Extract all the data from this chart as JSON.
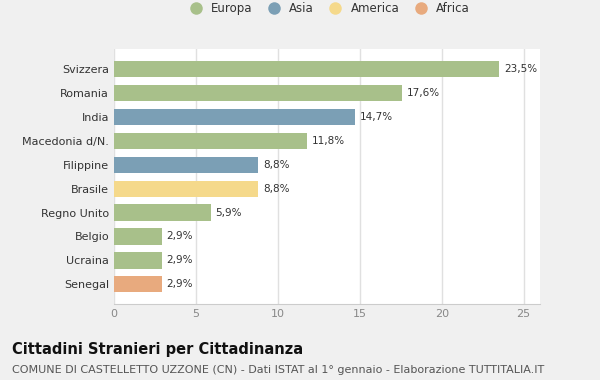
{
  "countries": [
    "Svizzera",
    "Romania",
    "India",
    "Macedonia d/N.",
    "Filippine",
    "Brasile",
    "Regno Unito",
    "Belgio",
    "Ucraina",
    "Senegal"
  ],
  "values": [
    23.5,
    17.6,
    14.7,
    11.8,
    8.8,
    8.8,
    5.9,
    2.9,
    2.9,
    2.9
  ],
  "labels": [
    "23,5%",
    "17,6%",
    "14,7%",
    "11,8%",
    "8,8%",
    "8,8%",
    "5,9%",
    "2,9%",
    "2,9%",
    "2,9%"
  ],
  "continents": [
    "Europa",
    "Europa",
    "Asia",
    "Europa",
    "Asia",
    "America",
    "Europa",
    "Europa",
    "Europa",
    "Africa"
  ],
  "colors": {
    "Europa": "#a8c08a",
    "Asia": "#7b9fb5",
    "America": "#f5d98b",
    "Africa": "#e8aa7e"
  },
  "legend_order": [
    "Europa",
    "Asia",
    "America",
    "Africa"
  ],
  "legend_colors": [
    "#a8c08a",
    "#7b9fb5",
    "#f5d98b",
    "#e8aa7e"
  ],
  "xlim": [
    0,
    26
  ],
  "xticks": [
    0,
    5,
    10,
    15,
    20,
    25
  ],
  "outer_bg": "#f0f0f0",
  "plot_bg": "#ffffff",
  "grid_color": "#e0e0e0",
  "title": "Cittadini Stranieri per Cittadinanza",
  "subtitle": "COMUNE DI CASTELLETTO UZZONE (CN) - Dati ISTAT al 1° gennaio - Elaborazione TUTTITALIA.IT",
  "title_fontsize": 10.5,
  "subtitle_fontsize": 8,
  "label_fontsize": 7.5,
  "tick_fontsize": 8,
  "legend_fontsize": 8.5
}
